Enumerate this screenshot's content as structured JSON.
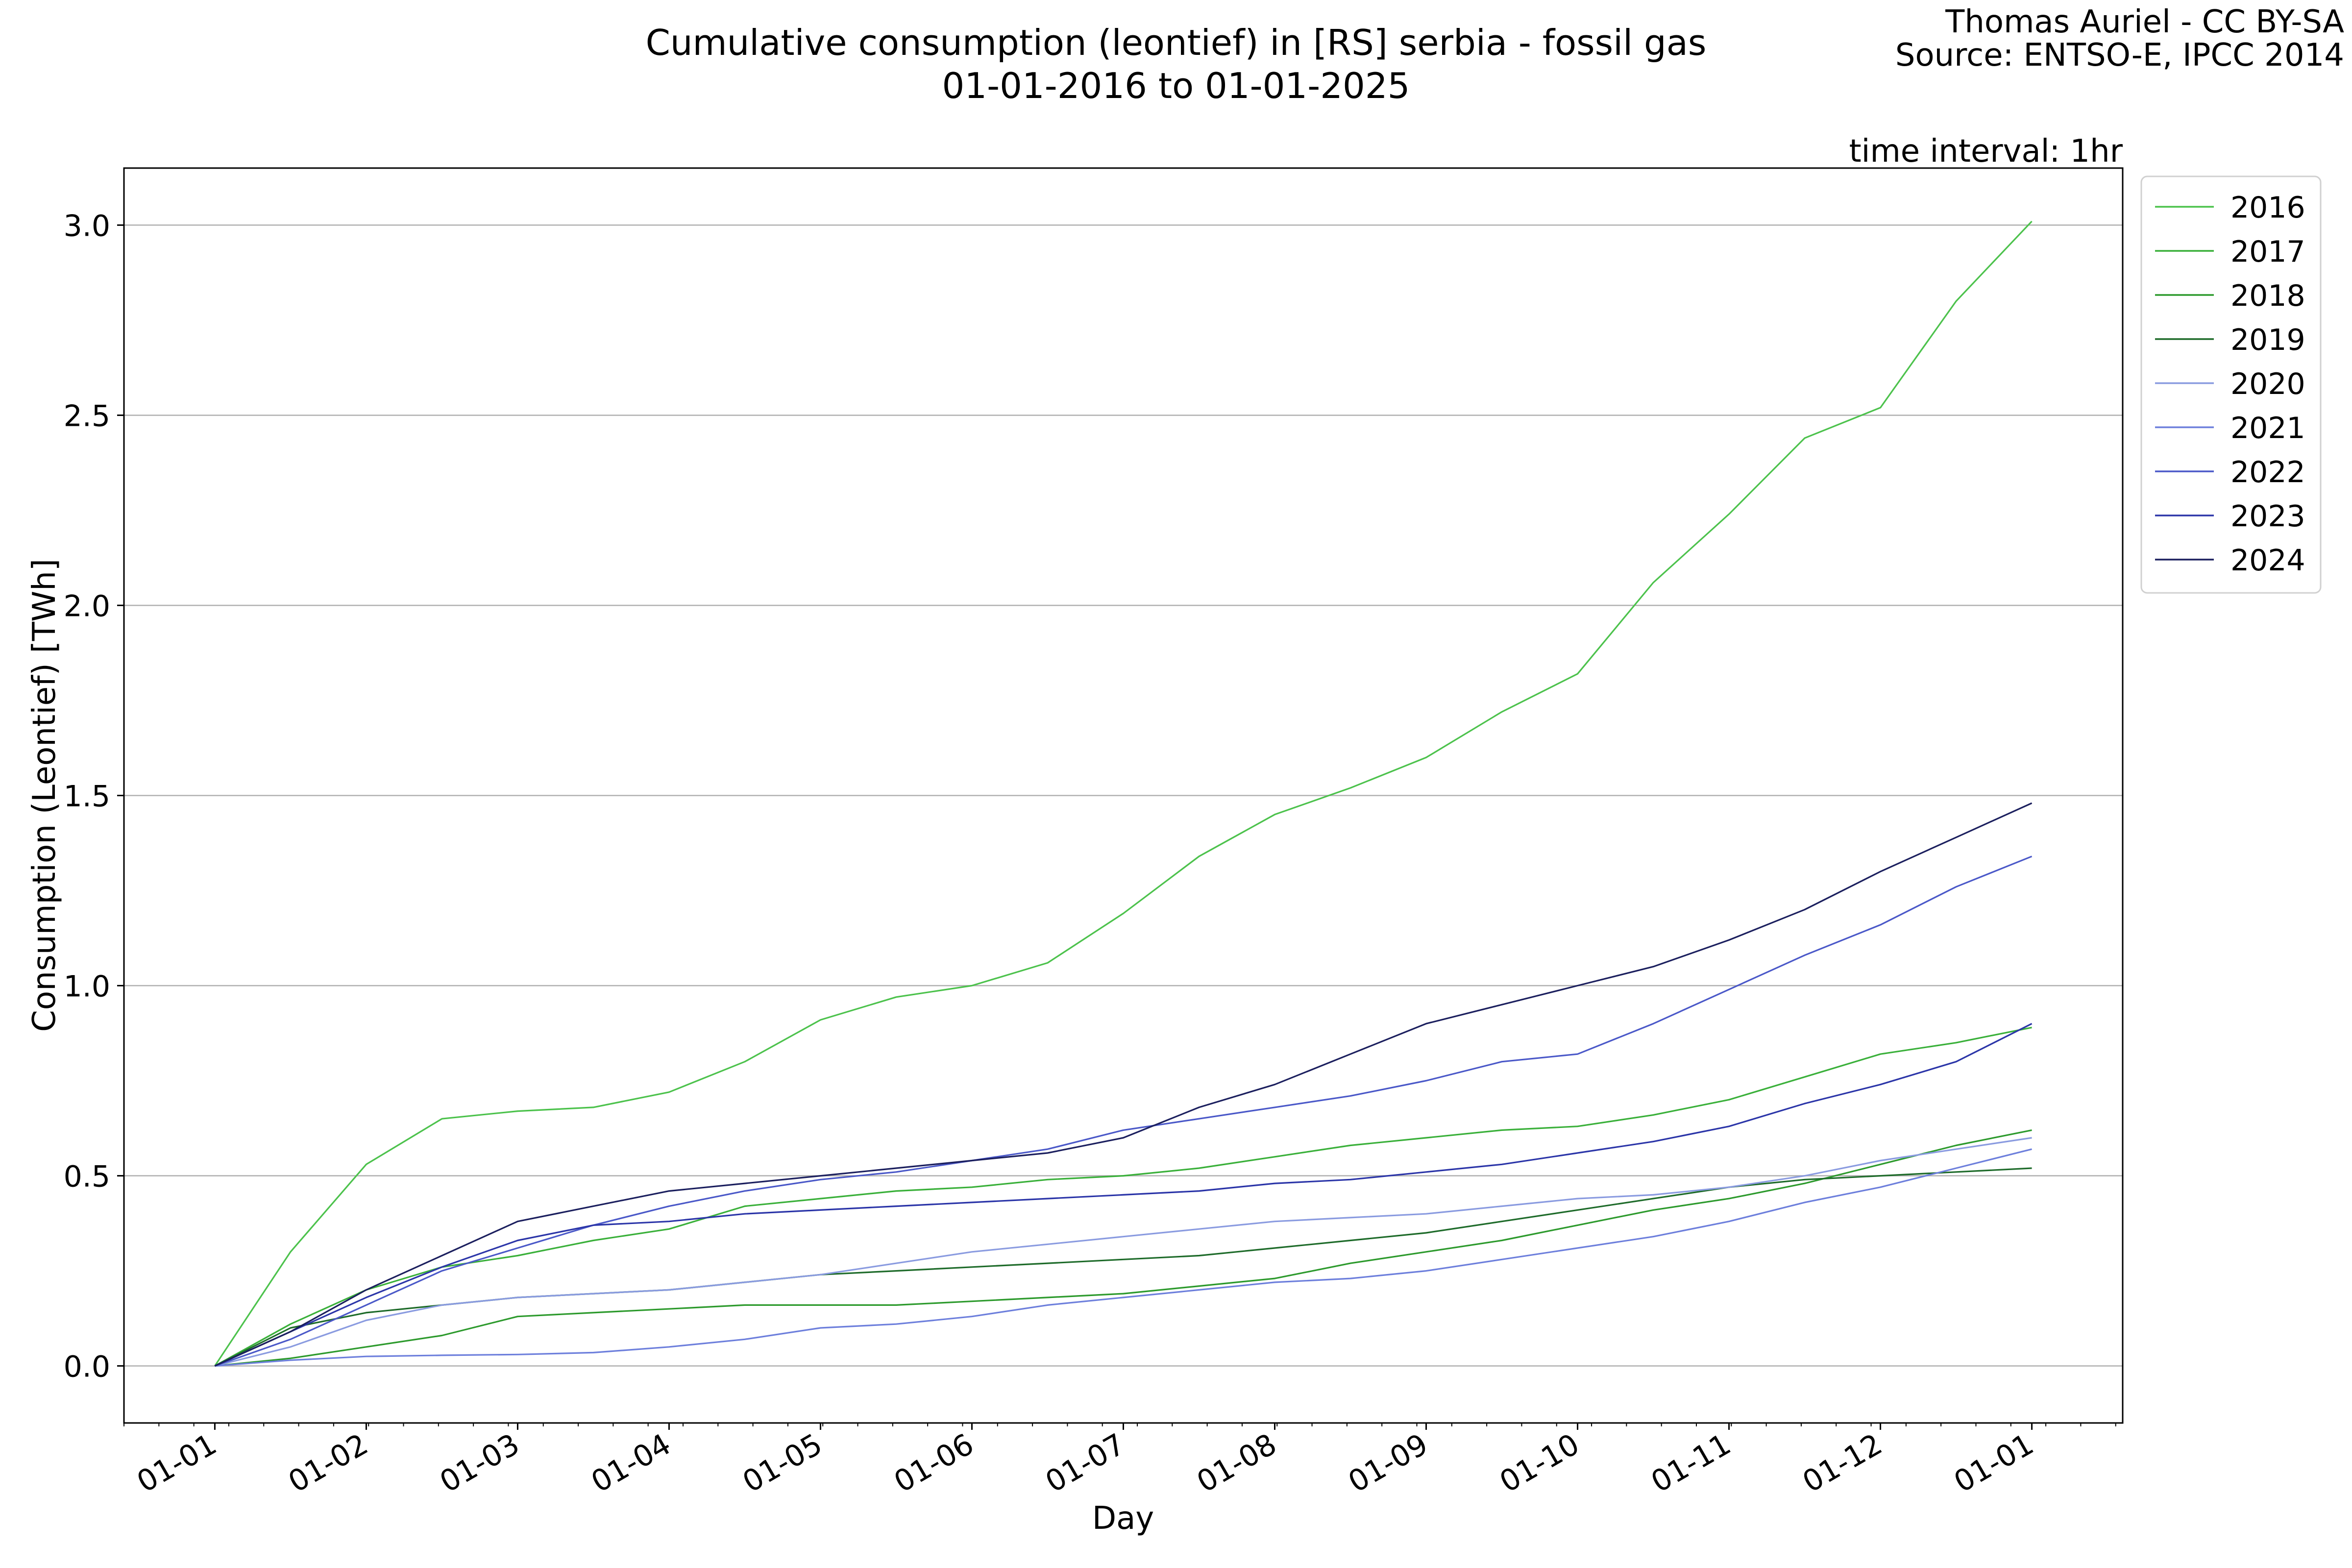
{
  "chart_data": {
    "type": "line",
    "title": "Cumulative consumption (leontief) in [RS] serbia - fossil gas",
    "subtitle": "01-01-2016 to 01-01-2025",
    "credit_line1": "Thomas Auriel - CC BY-SA",
    "credit_line2": "Source: ENTSO-E, IPCC 2014",
    "annotation": "time interval: 1hr",
    "xlabel": "Day",
    "ylabel": "Consumption (Leontief) [TWh]",
    "ylim": [
      -0.15,
      3.15
    ],
    "xlim": [
      -0.6,
      12.6
    ],
    "y_ticks": [
      0.0,
      0.5,
      1.0,
      1.5,
      2.0,
      2.5,
      3.0
    ],
    "y_tick_labels": [
      "0.0",
      "0.5",
      "1.0",
      "1.5",
      "2.0",
      "2.5",
      "3.0"
    ],
    "x_tick_labels": [
      "01-01",
      "01-02",
      "01-03",
      "01-04",
      "01-05",
      "01-06",
      "01-07",
      "01-08",
      "01-09",
      "01-10",
      "01-11",
      "01-12",
      "01-01"
    ],
    "x_tick_positions": [
      0,
      1,
      2,
      3,
      4,
      5,
      6,
      7,
      8,
      9,
      10,
      11,
      12
    ],
    "grid": "horizontal",
    "legend_position": "outside-top-right",
    "x": [
      0,
      0.5,
      1,
      1.5,
      2,
      2.5,
      3,
      3.5,
      4,
      4.5,
      5,
      5.5,
      6,
      6.5,
      7,
      7.5,
      8,
      8.5,
      9,
      9.5,
      10,
      10.5,
      11,
      11.5,
      12
    ],
    "series": [
      {
        "name": "2016",
        "color": "#4cc24c",
        "values": [
          0,
          0.3,
          0.53,
          0.65,
          0.67,
          0.68,
          0.72,
          0.8,
          0.91,
          0.97,
          1.0,
          1.06,
          1.19,
          1.34,
          1.45,
          1.52,
          1.6,
          1.72,
          1.82,
          2.06,
          2.24,
          2.44,
          2.52,
          2.8,
          3.01
        ]
      },
      {
        "name": "2017",
        "color": "#3ab03a",
        "values": [
          0,
          0.11,
          0.2,
          0.26,
          0.29,
          0.33,
          0.36,
          0.42,
          0.44,
          0.46,
          0.47,
          0.49,
          0.5,
          0.52,
          0.55,
          0.58,
          0.6,
          0.62,
          0.63,
          0.66,
          0.7,
          0.76,
          0.82,
          0.85,
          0.89
        ]
      },
      {
        "name": "2018",
        "color": "#2d9a2d",
        "values": [
          0,
          0.02,
          0.05,
          0.08,
          0.13,
          0.14,
          0.15,
          0.16,
          0.16,
          0.16,
          0.17,
          0.18,
          0.19,
          0.21,
          0.23,
          0.27,
          0.3,
          0.33,
          0.37,
          0.41,
          0.44,
          0.48,
          0.53,
          0.58,
          0.62
        ]
      },
      {
        "name": "2019",
        "color": "#1e6b2a",
        "values": [
          0,
          0.1,
          0.14,
          0.16,
          0.18,
          0.19,
          0.2,
          0.22,
          0.24,
          0.25,
          0.26,
          0.27,
          0.28,
          0.29,
          0.31,
          0.33,
          0.35,
          0.38,
          0.41,
          0.44,
          0.47,
          0.49,
          0.5,
          0.51,
          0.52
        ]
      },
      {
        "name": "2020",
        "color": "#8a9be0",
        "values": [
          0,
          0.05,
          0.12,
          0.16,
          0.18,
          0.19,
          0.2,
          0.22,
          0.24,
          0.27,
          0.3,
          0.32,
          0.34,
          0.36,
          0.38,
          0.39,
          0.4,
          0.42,
          0.44,
          0.45,
          0.47,
          0.5,
          0.54,
          0.57,
          0.6
        ]
      },
      {
        "name": "2021",
        "color": "#6d7fdc",
        "values": [
          0,
          0.015,
          0.025,
          0.028,
          0.03,
          0.035,
          0.05,
          0.07,
          0.1,
          0.11,
          0.13,
          0.16,
          0.18,
          0.2,
          0.22,
          0.23,
          0.25,
          0.28,
          0.31,
          0.34,
          0.38,
          0.43,
          0.47,
          0.52,
          0.57
        ]
      },
      {
        "name": "2022",
        "color": "#4a58c8",
        "values": [
          0,
          0.07,
          0.16,
          0.25,
          0.31,
          0.37,
          0.42,
          0.46,
          0.49,
          0.51,
          0.54,
          0.57,
          0.62,
          0.65,
          0.68,
          0.71,
          0.75,
          0.8,
          0.82,
          0.9,
          0.99,
          1.08,
          1.16,
          1.26,
          1.34
        ]
      },
      {
        "name": "2023",
        "color": "#2b35a8",
        "values": [
          0,
          0.09,
          0.18,
          0.26,
          0.33,
          0.37,
          0.38,
          0.4,
          0.41,
          0.42,
          0.43,
          0.44,
          0.45,
          0.46,
          0.48,
          0.49,
          0.51,
          0.53,
          0.56,
          0.59,
          0.63,
          0.69,
          0.74,
          0.8,
          0.9
        ]
      },
      {
        "name": "2024",
        "color": "#1b1f5e",
        "values": [
          0,
          0.09,
          0.2,
          0.29,
          0.38,
          0.42,
          0.46,
          0.48,
          0.5,
          0.52,
          0.54,
          0.56,
          0.6,
          0.68,
          0.74,
          0.82,
          0.9,
          0.95,
          1.0,
          1.05,
          1.12,
          1.2,
          1.3,
          1.39,
          1.48
        ]
      }
    ]
  }
}
